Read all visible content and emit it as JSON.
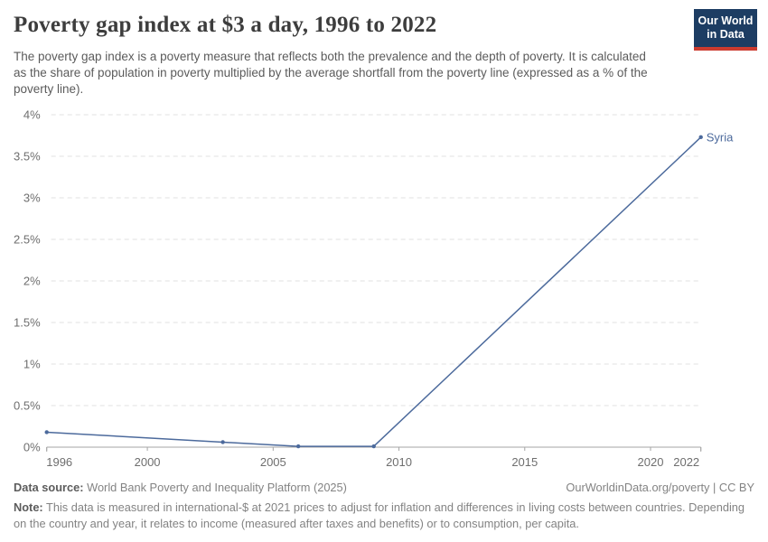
{
  "header": {
    "title": "Poverty gap index at $3 a day, 1996 to 2022",
    "subtitle": "The poverty gap index is a poverty measure that reflects both the prevalence and the depth of poverty. It is calculated as the share of population in poverty multiplied by the average shortfall from the poverty line (expressed as a % of the poverty line).",
    "logo": {
      "line1": "Our World",
      "line2": "in Data",
      "bg_color": "#1d3d63",
      "bar_color": "#cc3b2f"
    }
  },
  "chart_data": {
    "type": "line",
    "title": "Poverty gap index at $3 a day, 1996 to 2022",
    "xlabel": "",
    "ylabel": "",
    "xlim": [
      1996,
      2022
    ],
    "ylim": [
      0,
      4
    ],
    "grid": "horizontal-dashed",
    "legend": "end-of-line-label",
    "x_ticks": [
      1996,
      2000,
      2005,
      2010,
      2015,
      2020,
      2022
    ],
    "y_ticks": [
      {
        "value": 0,
        "label": "0%"
      },
      {
        "value": 0.5,
        "label": "0.5%"
      },
      {
        "value": 1,
        "label": "1%"
      },
      {
        "value": 1.5,
        "label": "1.5%"
      },
      {
        "value": 2,
        "label": "2%"
      },
      {
        "value": 2.5,
        "label": "2.5%"
      },
      {
        "value": 3,
        "label": "3%"
      },
      {
        "value": 3.5,
        "label": "3.5%"
      },
      {
        "value": 4,
        "label": "4%"
      }
    ],
    "series": [
      {
        "name": "Syria",
        "color": "#4C6A9C",
        "points": [
          {
            "year": 1996,
            "value": 0.18
          },
          {
            "year": 2003,
            "value": 0.06
          },
          {
            "year": 2006,
            "value": 0.01
          },
          {
            "year": 2009,
            "value": 0.01
          },
          {
            "year": 2022,
            "value": 3.73
          }
        ]
      }
    ]
  },
  "footer": {
    "datasource_label": "Data source:",
    "datasource_text": "World Bank Poverty and Inequality Platform (2025)",
    "link_text": "OurWorldinData.org/poverty | CC BY",
    "note_label": "Note:",
    "note_text": "This data is measured in international-$ at 2021 prices to adjust for inflation and differences in living costs between countries. Depending on the country and year, it relates to income (measured after taxes and benefits) or to consumption, per capita."
  },
  "colors": {
    "accent_line": "#4C6A9C",
    "grid": "#e0e0e0",
    "axis": "#a5a5a5",
    "tick_text": "#6e6e6e",
    "title_text": "#3d3d3d",
    "subtitle_text": "#5b5b5b",
    "footer_text": "#838383"
  }
}
